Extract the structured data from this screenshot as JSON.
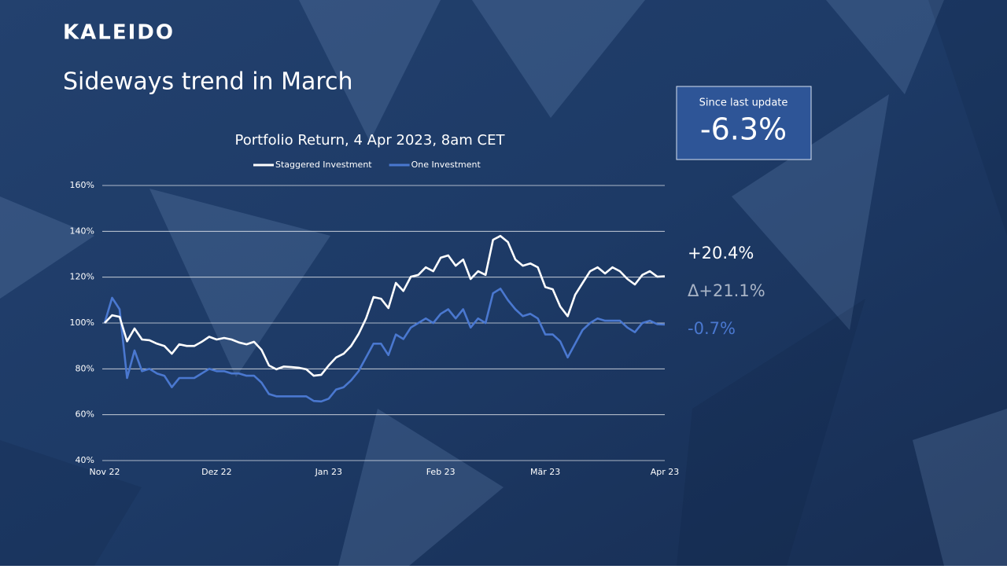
{
  "logo": "KALEIDO",
  "headline": "Sideways trend in March",
  "callout": {
    "label": "Since last update",
    "value": "-6.3%"
  },
  "stats": [
    "+20.4%",
    "Δ+21.1%",
    "-0.7%"
  ],
  "chart_data": {
    "type": "line",
    "title": "Portfolio Return, 4 Apr 2023, 8am CET",
    "categories": [
      "Nov 22",
      null,
      null,
      null,
      null,
      null,
      null,
      null,
      null,
      null,
      null,
      null,
      null,
      null,
      null,
      "Dez 22",
      null,
      null,
      null,
      null,
      null,
      null,
      null,
      null,
      null,
      null,
      null,
      null,
      null,
      null,
      "Jan 23",
      null,
      null,
      null,
      null,
      null,
      null,
      null,
      null,
      null,
      null,
      null,
      null,
      null,
      null,
      "Feb 23",
      null,
      null,
      null,
      null,
      null,
      null,
      null,
      null,
      null,
      null,
      null,
      null,
      null,
      "Mär 23",
      null,
      null,
      null,
      null,
      null,
      null,
      null,
      null,
      null,
      null,
      null,
      null,
      null,
      null,
      null,
      "Apr 23"
    ],
    "series": [
      {
        "name": "Staggered Investment",
        "color": "#ffffff",
        "values": [
          100,
          103.4,
          102.7,
          92,
          97.6,
          92.8,
          92.5,
          91,
          90,
          86.6,
          90.7,
          90,
          90,
          91.8,
          94,
          92.8,
          93.5,
          92.8,
          91.5,
          90.7,
          91.8,
          88.3,
          81.5,
          79.8,
          81,
          80.8,
          80.5,
          79.8,
          77,
          77.4,
          81.5,
          85,
          86.6,
          90,
          95.2,
          102,
          111.3,
          110.6,
          106.5,
          117.5,
          114,
          120.2,
          121,
          124.3,
          122.6,
          128.5,
          129.5,
          125,
          127.7,
          119.2,
          122.6,
          121,
          136.3,
          138,
          135.3,
          127.7,
          125,
          126,
          124.3,
          115.7,
          114.7,
          107.2,
          103,
          112.3,
          117.5,
          122.6,
          124.3,
          121.6,
          124.3,
          122.6,
          119.2,
          116.8,
          121,
          122.6,
          120.2,
          120.4
        ]
      },
      {
        "name": "One Investment",
        "color": "#4a78d0",
        "values": [
          100,
          111,
          106,
          76,
          88,
          79,
          80,
          78,
          77,
          72,
          76,
          76,
          76,
          78,
          80,
          79,
          79,
          78,
          78,
          77,
          77,
          74,
          69,
          68,
          68,
          68,
          68,
          68,
          66,
          65.8,
          67,
          71,
          72,
          75,
          79,
          85,
          91,
          91,
          86,
          95,
          93,
          98,
          100,
          102,
          100,
          104,
          106,
          102,
          106,
          98,
          102,
          100,
          113,
          115,
          110,
          106,
          103,
          104,
          102,
          95,
          95,
          92,
          85,
          91,
          97,
          100,
          102,
          101,
          101,
          101,
          98,
          96,
          100,
          101,
          99.5,
          99.3
        ]
      }
    ],
    "ylim": [
      40,
      160
    ],
    "yticks": [
      {
        "value": 40,
        "label": "40%"
      },
      {
        "value": 60,
        "label": "60%"
      },
      {
        "value": 80,
        "label": "80%"
      },
      {
        "value": 100,
        "label": "100%"
      },
      {
        "value": 120,
        "label": "120%"
      },
      {
        "value": 140,
        "label": "140%"
      },
      {
        "value": 160,
        "label": "160%"
      }
    ],
    "grid": true,
    "legend": "top"
  }
}
